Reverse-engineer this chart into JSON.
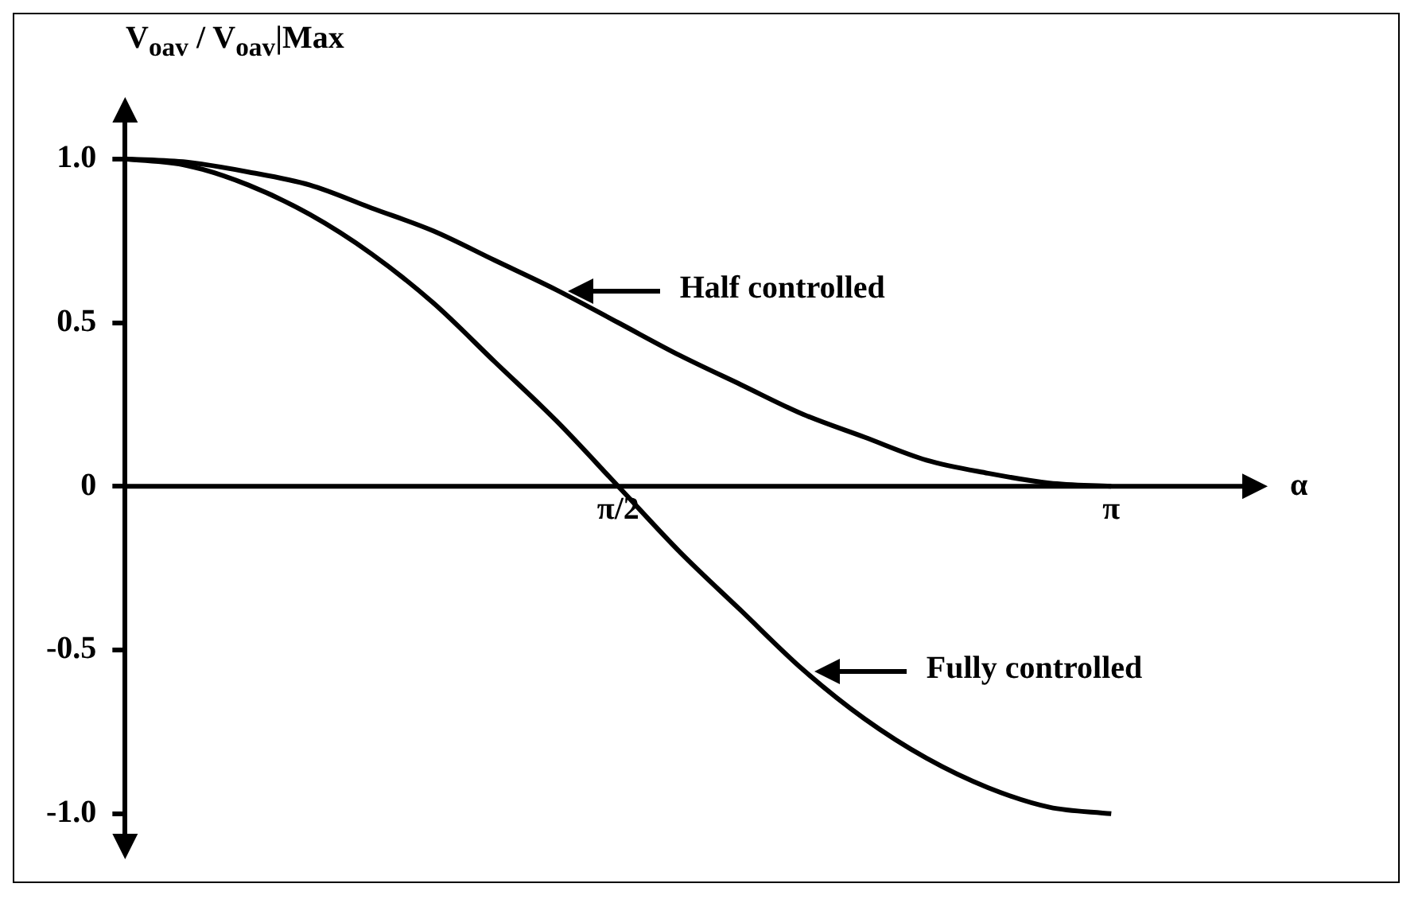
{
  "chart_data": {
    "type": "line",
    "ylabel": "V$_{oav}$ / V$_{oav}$|Max",
    "xlabel": "α",
    "x": [
      0,
      0.196,
      0.393,
      0.589,
      0.785,
      0.982,
      1.178,
      1.374,
      1.571,
      1.767,
      1.963,
      2.16,
      2.356,
      2.553,
      2.749,
      2.945,
      3.142
    ],
    "series": [
      {
        "name": "Half controlled",
        "color": "#000000",
        "values": [
          1,
          0.99,
          0.96,
          0.92,
          0.85,
          0.78,
          0.69,
          0.6,
          0.5,
          0.4,
          0.31,
          0.22,
          0.15,
          0.08,
          0.04,
          0.01,
          0
        ]
      },
      {
        "name": "Fully controlled",
        "color": "#000000",
        "values": [
          1,
          0.98,
          0.92,
          0.83,
          0.71,
          0.56,
          0.38,
          0.2,
          0,
          -0.2,
          -0.38,
          -0.56,
          -0.71,
          -0.83,
          -0.92,
          -0.98,
          -1
        ]
      }
    ],
    "xlim": [
      0,
      3.6
    ],
    "ylim": [
      -1.1,
      1.15
    ],
    "xticks": [
      {
        "value": 1.571,
        "label": "π/2"
      },
      {
        "value": 3.142,
        "label": "π"
      }
    ],
    "yticks": [
      {
        "value": -1,
        "label": "-1.0"
      },
      {
        "value": -0.5,
        "label": "-0.5"
      },
      0,
      {
        "value": 0.5,
        "label": "0.5"
      },
      {
        "value": 1,
        "label": "1.0"
      }
    ],
    "grid": false,
    "legend": "right",
    "marker": "none",
    "line_style": "solid"
  }
}
